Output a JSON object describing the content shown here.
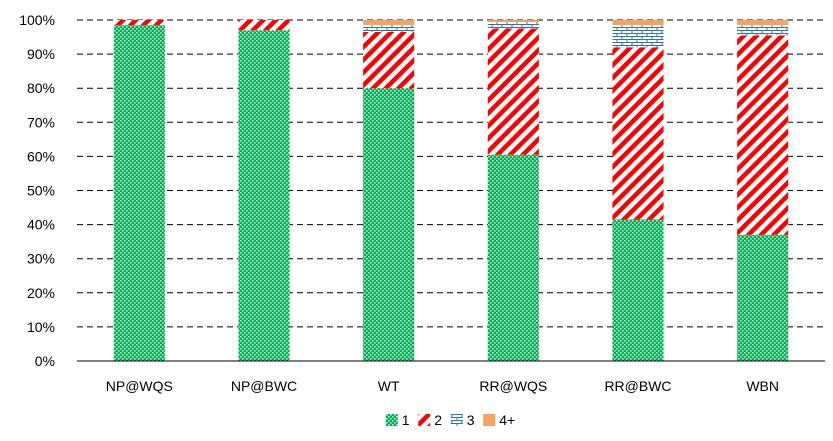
{
  "chart_data": {
    "type": "bar",
    "stacked": true,
    "percent": true,
    "categories": [
      "NP@WQS",
      "NP@BWC",
      "WT",
      "RR@WQS",
      "RR@BWC",
      "WBN"
    ],
    "series": [
      {
        "name": "1",
        "values": [
          98.5,
          97.0,
          80.0,
          60.5,
          41.5,
          37.0
        ],
        "color": "#00B050",
        "pattern": "dotted-grid"
      },
      {
        "name": "2",
        "values": [
          1.5,
          3.0,
          16.5,
          37.0,
          50.5,
          58.5
        ],
        "color": "#FF0000",
        "pattern": "wide-diagonal"
      },
      {
        "name": "3",
        "values": [
          0.0,
          0.0,
          2.0,
          2.0,
          6.5,
          3.0
        ],
        "color": "#2E75B6",
        "pattern": "brick"
      },
      {
        "name": "4+",
        "values": [
          0.0,
          0.0,
          1.5,
          0.5,
          1.5,
          1.5
        ],
        "color": "#F4A460",
        "pattern": "solid"
      }
    ],
    "ylim": [
      0,
      100
    ],
    "yticks": [
      "0%",
      "10%",
      "20%",
      "30%",
      "40%",
      "50%",
      "60%",
      "70%",
      "80%",
      "90%",
      "100%"
    ],
    "grid": true,
    "grid_style": "dashed",
    "legend_position": "bottom-center",
    "title": "",
    "xlabel": "",
    "ylabel": ""
  }
}
